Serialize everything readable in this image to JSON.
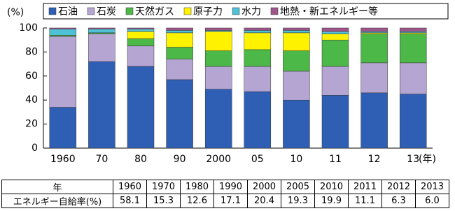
{
  "chart_data": {
    "type": "stacked-bar",
    "ylabel": "(%)",
    "xlabel": "(年)",
    "categories": [
      "1960",
      "70",
      "80",
      "90",
      "2000",
      "05",
      "10",
      "11",
      "12",
      "13"
    ],
    "ylim": [
      0,
      100
    ],
    "yticks": [
      0,
      20,
      40,
      60,
      80,
      100
    ],
    "series": [
      {
        "name": "石油",
        "color": "#2f5fb5",
        "values": [
          34,
          72,
          68,
          57,
          49,
          47,
          40,
          44,
          46,
          45
        ]
      },
      {
        "name": "石炭",
        "color": "#b5a5d2",
        "values": [
          59,
          23,
          17,
          17,
          19,
          21,
          24,
          24,
          25,
          26
        ]
      },
      {
        "name": "天然ガス",
        "color": "#4cb848",
        "values": [
          1,
          1,
          6,
          10,
          13,
          14,
          17,
          22,
          24,
          24
        ]
      },
      {
        "name": "原子力",
        "color": "#fff200",
        "values": [
          0,
          0,
          6,
          12,
          16,
          14,
          15,
          5,
          1,
          1
        ]
      },
      {
        "name": "水力",
        "color": "#4fc1d6",
        "values": [
          5,
          3,
          2,
          2,
          1,
          2,
          2,
          2,
          1,
          1
        ]
      },
      {
        "name": "地熱・新エネルギー等",
        "color": "#a0558a",
        "values": [
          1,
          1,
          1,
          2,
          2,
          2,
          2,
          3,
          3,
          3
        ]
      }
    ]
  },
  "table": {
    "header": "年",
    "years": [
      "1960",
      "1970",
      "1980",
      "1990",
      "2000",
      "2005",
      "2010",
      "2011",
      "2012",
      "2013"
    ],
    "row_label": "エネルギー自給率(%)",
    "values": [
      "58.1",
      "15.3",
      "12.6",
      "17.1",
      "20.4",
      "19.3",
      "19.9",
      "11.1",
      "6.3",
      "6.0"
    ]
  }
}
